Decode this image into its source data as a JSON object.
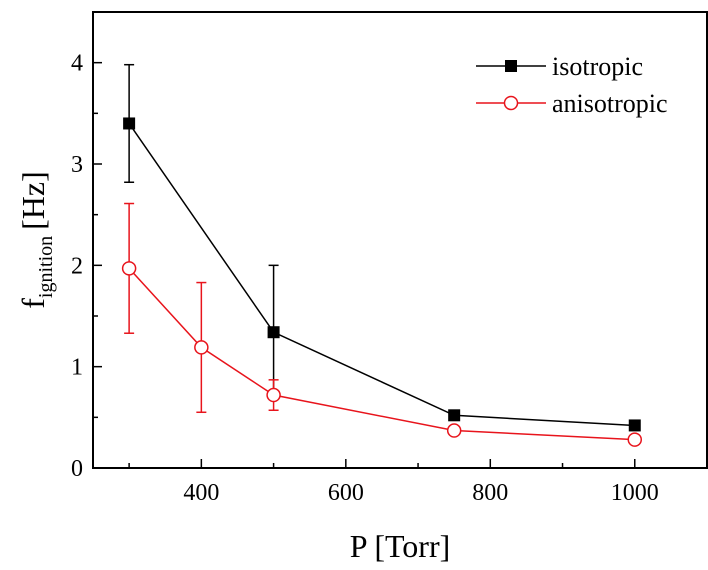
{
  "chart_data": {
    "type": "line",
    "xlabel": "P [Torr]",
    "ylabel": {
      "main": "f",
      "subscript": "ignition",
      "unit": "[Hz]"
    },
    "xlim": [
      250,
      1100
    ],
    "ylim": [
      0,
      4.5
    ],
    "xticks": [
      400,
      600,
      800,
      1000
    ],
    "yticks": [
      0,
      1,
      2,
      3,
      4
    ],
    "grid": false,
    "legend": "top-right",
    "series": [
      {
        "name": "isotropic",
        "color": "#000000",
        "marker": "filled-square",
        "x": [
          300,
          500,
          750,
          1000
        ],
        "y": [
          3.4,
          1.34,
          0.52,
          0.42
        ],
        "err": [
          0.58,
          0.66,
          0.0,
          0.0
        ]
      },
      {
        "name": "anisotropic",
        "color": "#e8141c",
        "marker": "open-circle",
        "x": [
          300,
          400,
          500,
          750,
          1000
        ],
        "y": [
          1.97,
          1.19,
          0.72,
          0.37,
          0.28
        ],
        "err": [
          0.64,
          0.64,
          0.15,
          0.0,
          0.0
        ]
      }
    ]
  }
}
